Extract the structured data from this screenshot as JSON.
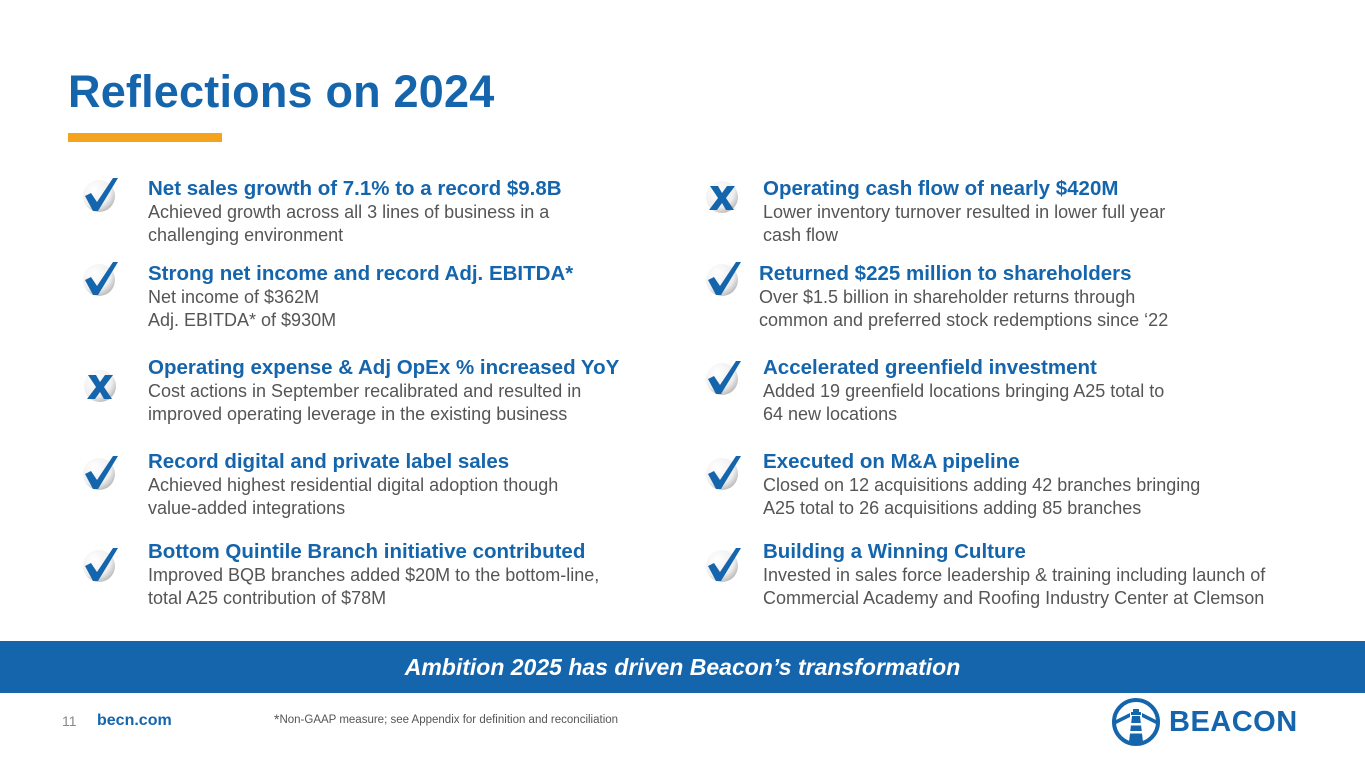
{
  "slide": {
    "title": "Reflections on 2024",
    "page_number": "11",
    "website": "becn.com",
    "footnote_star": "*",
    "footnote": "Non-GAAP measure; see Appendix for definition and reconciliation",
    "banner": "Ambition 2025 has driven Beacon’s transformation",
    "logo_text": "BEACON"
  },
  "colors": {
    "brand_blue": "#1565ad",
    "accent_orange": "#f4a31c",
    "body_gray": "#555555"
  },
  "left_items": [
    {
      "status": "check",
      "heading": "Net sales growth of 7.1% to a record $9.8B",
      "lines": [
        "Achieved growth across all 3 lines of business in a",
        "challenging environment"
      ]
    },
    {
      "status": "check",
      "heading": "Strong net income and record Adj. EBITDA*",
      "lines": [
        "Net income of $362M",
        "Adj. EBITDA* of $930M"
      ]
    },
    {
      "status": "x",
      "heading": "Operating expense & Adj OpEx % increased YoY",
      "lines": [
        "Cost actions in September recalibrated and resulted in",
        "improved operating leverage in the existing business"
      ]
    },
    {
      "status": "check",
      "heading": "Record digital and private label sales",
      "lines": [
        "Achieved highest residential digital adoption though",
        "value-added integrations"
      ]
    },
    {
      "status": "check",
      "heading": "Bottom Quintile Branch initiative contributed",
      "lines": [
        "Improved BQB branches added $20M to the bottom-line,",
        "total A25 contribution of $78M"
      ]
    }
  ],
  "right_items": [
    {
      "status": "x",
      "heading": "Operating cash flow of nearly $420M",
      "lines": [
        "Lower inventory turnover resulted in lower full year",
        "cash flow"
      ]
    },
    {
      "status": "check",
      "heading": "Returned $225 million to shareholders",
      "lines": [
        "Over $1.5 billion in shareholder returns through",
        "common and preferred stock redemptions since ‘22"
      ]
    },
    {
      "status": "check",
      "heading": "Accelerated greenfield investment",
      "lines": [
        "Added 19 greenfield locations bringing A25 total to",
        "64 new locations"
      ]
    },
    {
      "status": "check",
      "heading": "Executed on M&A pipeline",
      "lines": [
        "Closed on 12 acquisitions adding 42 branches bringing",
        "A25 total to 26 acquisitions adding 85 branches"
      ]
    },
    {
      "status": "check",
      "heading": "Building a Winning Culture",
      "lines": [
        "Invested in sales force leadership & training including launch of",
        "Commercial Academy and Roofing Industry Center at Clemson"
      ]
    }
  ]
}
